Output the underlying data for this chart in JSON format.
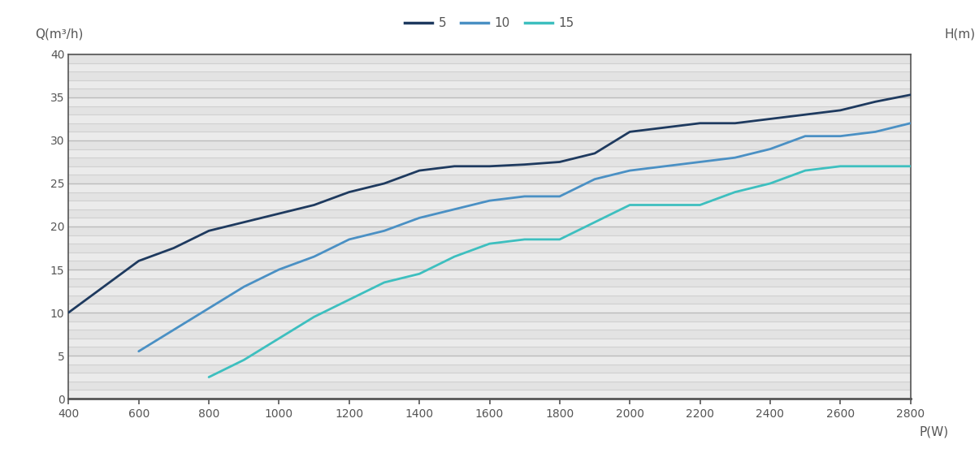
{
  "xlabel": "P(W)",
  "ylabel_left": "Q(m³/h)",
  "ylabel_right": "H(m)",
  "xlim": [
    400,
    2800
  ],
  "ylim": [
    0,
    40
  ],
  "xticks": [
    400,
    600,
    800,
    1000,
    1200,
    1400,
    1600,
    1800,
    2000,
    2200,
    2400,
    2600,
    2800
  ],
  "yticks_major": [
    0,
    5,
    10,
    15,
    20,
    25,
    30,
    35,
    40
  ],
  "yticks_minor_step": 1,
  "series": [
    {
      "label": "5",
      "color": "#1e3a5f",
      "linewidth": 2.0,
      "x": [
        400,
        500,
        600,
        700,
        800,
        900,
        1000,
        1100,
        1200,
        1300,
        1400,
        1500,
        1600,
        1700,
        1800,
        1900,
        2000,
        2100,
        2200,
        2300,
        2400,
        2500,
        2600,
        2700,
        2800
      ],
      "y": [
        10.0,
        13.0,
        16.0,
        17.5,
        19.5,
        20.5,
        21.5,
        22.5,
        24.0,
        25.0,
        26.5,
        27.0,
        27.0,
        27.2,
        27.5,
        28.5,
        31.0,
        31.5,
        32.0,
        32.0,
        32.5,
        33.0,
        33.5,
        34.5,
        35.3
      ]
    },
    {
      "label": "10",
      "color": "#4a90c4",
      "linewidth": 2.0,
      "x": [
        600,
        700,
        800,
        900,
        1000,
        1100,
        1200,
        1300,
        1400,
        1500,
        1600,
        1700,
        1800,
        1900,
        2000,
        2100,
        2200,
        2300,
        2400,
        2500,
        2600,
        2700,
        2800
      ],
      "y": [
        5.5,
        8.0,
        10.5,
        13.0,
        15.0,
        16.5,
        18.5,
        19.5,
        21.0,
        22.0,
        23.0,
        23.5,
        23.5,
        25.5,
        26.5,
        27.0,
        27.5,
        28.0,
        29.0,
        30.5,
        30.5,
        31.0,
        32.0
      ]
    },
    {
      "label": "15",
      "color": "#3dbfbf",
      "linewidth": 2.0,
      "x": [
        800,
        900,
        1000,
        1100,
        1200,
        1300,
        1400,
        1500,
        1600,
        1700,
        1800,
        1900,
        2000,
        2100,
        2200,
        2300,
        2400,
        2500,
        2600,
        2700,
        2800
      ],
      "y": [
        2.5,
        4.5,
        7.0,
        9.5,
        11.5,
        13.5,
        14.5,
        16.5,
        18.0,
        18.5,
        18.5,
        20.5,
        22.5,
        22.5,
        22.5,
        24.0,
        25.0,
        26.5,
        27.0,
        27.0,
        27.0
      ]
    }
  ],
  "background_color": "#ffffff",
  "plot_bg_color": "#f0f0f0",
  "grid_color_light": "#e8e8e8",
  "grid_color_dark": "#c8c8c8",
  "border_color": "#555555",
  "legend_colors": [
    "#1e3a5f",
    "#4a90c4",
    "#3dbfbf"
  ],
  "legend_labels": [
    "5",
    "10",
    "15"
  ],
  "tick_color": "#555555",
  "label_color": "#555555"
}
